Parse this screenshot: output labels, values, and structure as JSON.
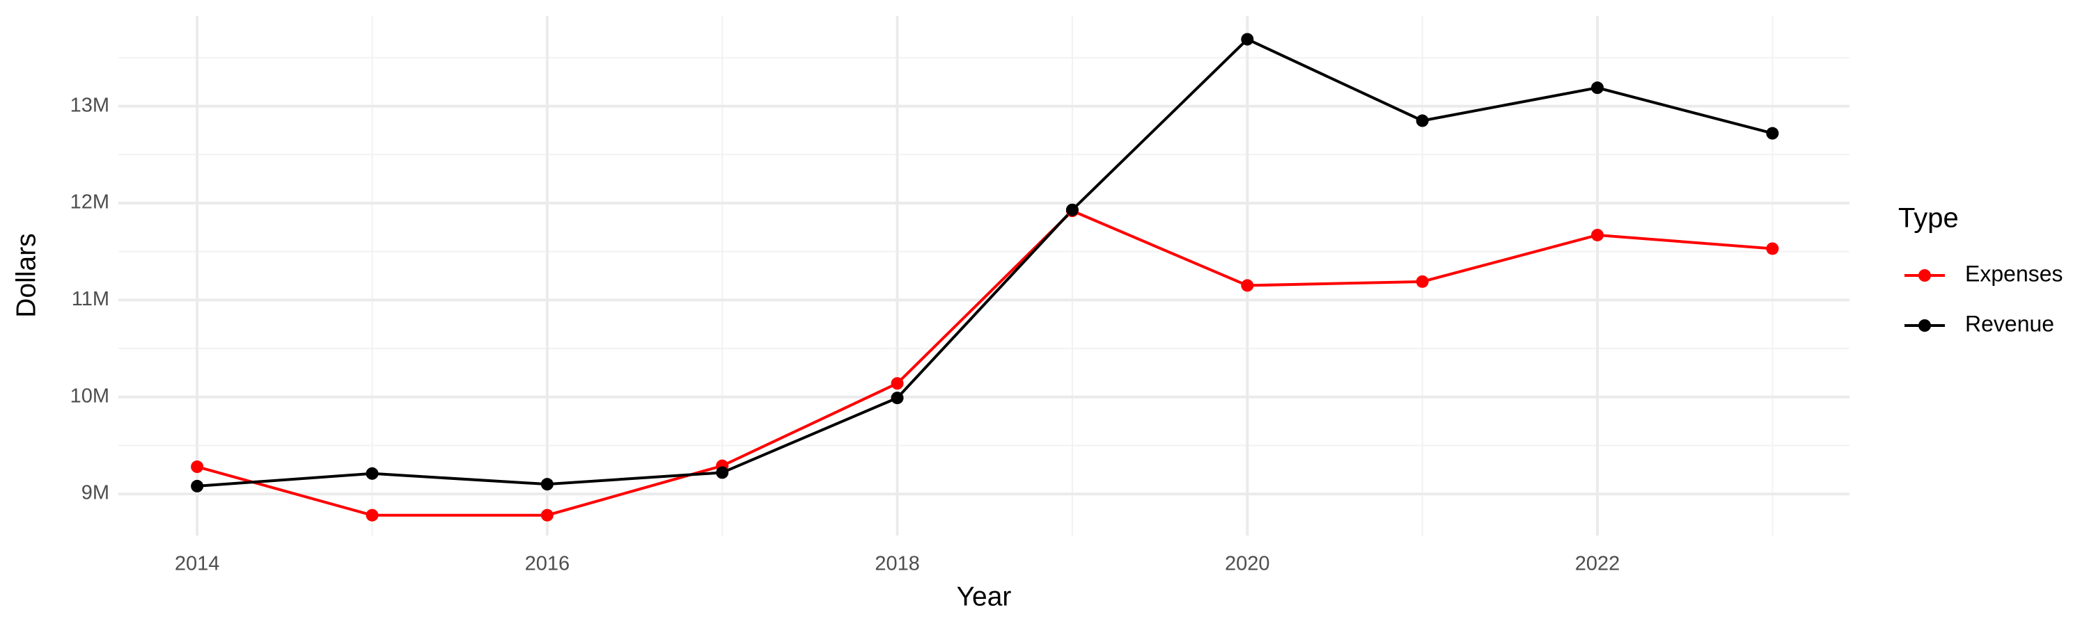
{
  "chart_data": {
    "type": "line",
    "x_label": "Year",
    "y_label": "Dollars",
    "legend_title": "Type",
    "x": [
      2014,
      2015,
      2016,
      2017,
      2018,
      2019,
      2020,
      2021,
      2022,
      2023
    ],
    "series": [
      {
        "name": "Expenses",
        "color": "#ff0000",
        "values": [
          9280000,
          8780000,
          8780000,
          9290000,
          10140000,
          11920000,
          11150000,
          11190000,
          11670000,
          11530000
        ]
      },
      {
        "name": "Revenue",
        "color": "#000000",
        "values": [
          9080000,
          9210000,
          9100000,
          9220000,
          9990000,
          11930000,
          13690000,
          12850000,
          13190000,
          12720000
        ]
      }
    ],
    "xlim": [
      2013.55,
      2023.44
    ],
    "xticks": [
      2014,
      2016,
      2018,
      2020,
      2022
    ],
    "ylim": [
      8570000,
      13930000
    ],
    "yticks": [
      {
        "value": 9000000,
        "label": "9M"
      },
      {
        "value": 10000000,
        "label": "10M"
      },
      {
        "value": 11000000,
        "label": "11M"
      },
      {
        "value": 12000000,
        "label": "12M"
      },
      {
        "value": 13000000,
        "label": "13M"
      }
    ],
    "grid": true,
    "legend_position": "right"
  }
}
